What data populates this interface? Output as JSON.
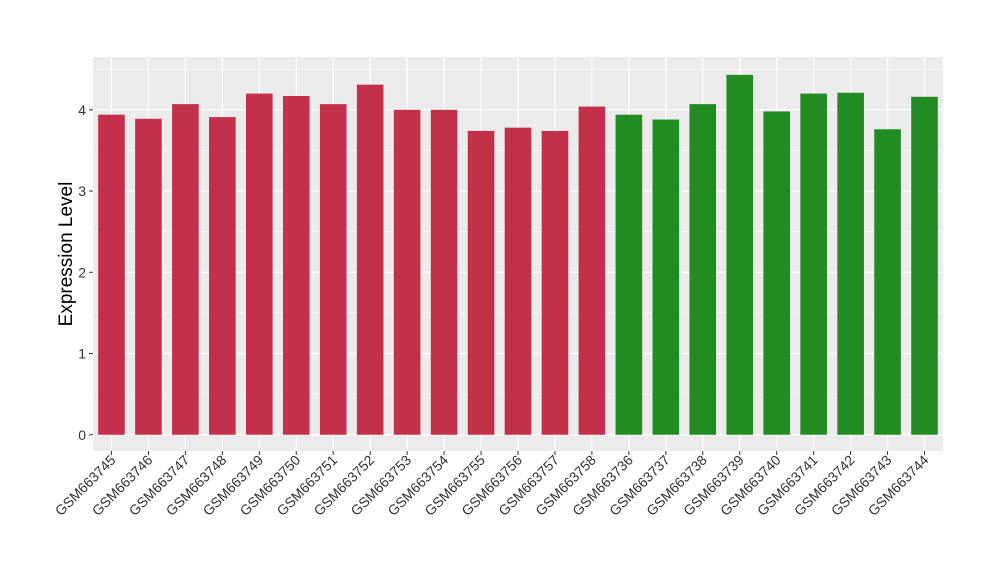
{
  "chart_data": {
    "type": "bar",
    "title": "",
    "xlabel": "",
    "ylabel": "Expression Level",
    "ylim": [
      -0.2,
      4.65
    ],
    "yticks": [
      0,
      1,
      2,
      3,
      4
    ],
    "grid": true,
    "legend": "none",
    "categories": [
      "GSM663745",
      "GSM663746",
      "GSM663747",
      "GSM663748",
      "GSM663749",
      "GSM663750",
      "GSM663751",
      "GSM663752",
      "GSM663753",
      "GSM663754",
      "GSM663755",
      "GSM663756",
      "GSM663757",
      "GSM663758",
      "GSM663736",
      "GSM663737",
      "GSM663738",
      "GSM663739",
      "GSM663740",
      "GSM663741",
      "GSM663742",
      "GSM663743",
      "GSM663744"
    ],
    "values": [
      3.94,
      3.89,
      4.07,
      3.91,
      4.2,
      4.17,
      4.07,
      4.31,
      4.0,
      4.0,
      3.74,
      3.78,
      3.74,
      4.04,
      3.94,
      3.88,
      4.07,
      4.43,
      3.98,
      4.2,
      4.21,
      3.76,
      4.16
    ],
    "bar_colors": [
      "#c3304a",
      "#c3304a",
      "#c3304a",
      "#c3304a",
      "#c3304a",
      "#c3304a",
      "#c3304a",
      "#c3304a",
      "#c3304a",
      "#c3304a",
      "#c3304a",
      "#c3304a",
      "#c3304a",
      "#c3304a",
      "#228b22",
      "#228b22",
      "#228b22",
      "#228b22",
      "#228b22",
      "#228b22",
      "#228b22",
      "#228b22",
      "#228b22"
    ],
    "colors": {
      "panel_background": "#ebebeb",
      "gridline": "#ffffff",
      "group_1": "#c3304a",
      "group_2": "#228b22"
    }
  }
}
